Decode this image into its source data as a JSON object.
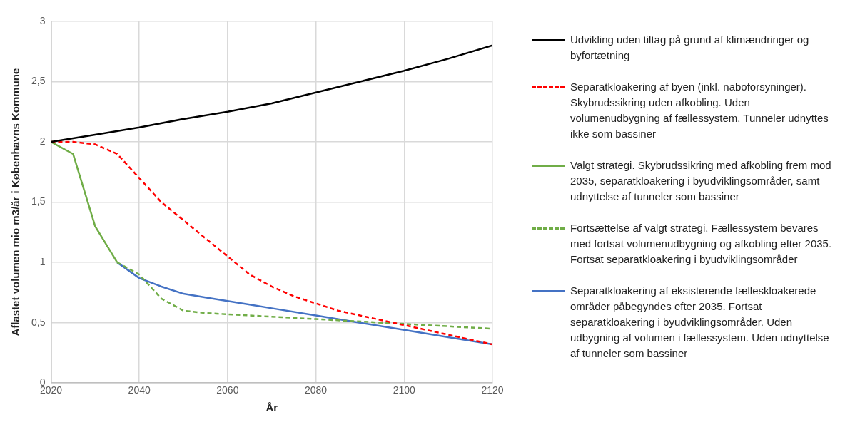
{
  "chart_data": {
    "type": "line",
    "xlabel": "År",
    "ylabel": "Aflastet volumen mio m3/år i Københavns Kommune",
    "xlim": [
      2020,
      2120
    ],
    "xticks": [
      2020,
      2040,
      2060,
      2080,
      2100,
      2120
    ],
    "ylim": [
      0,
      3
    ],
    "yticks": [
      0,
      {
        "value": 0.5,
        "label": "0,5"
      },
      1,
      {
        "value": 1.5,
        "label": "1,5"
      },
      2,
      {
        "value": 2.5,
        "label": "2,5"
      },
      3
    ],
    "grid": true,
    "legend": "right",
    "marker": "none",
    "series": [
      {
        "name": "Udvikling uden tiltag på grund af klimændringer og byfortætning",
        "color": "#000000",
        "line_style": "solid",
        "x": [
          2020,
          2030,
          2040,
          2050,
          2060,
          2070,
          2080,
          2090,
          2100,
          2110,
          2120
        ],
        "values": [
          2.0,
          2.06,
          2.12,
          2.19,
          2.25,
          2.32,
          2.41,
          2.5,
          2.59,
          2.69,
          2.8
        ]
      },
      {
        "name": "Separatkloakering af byen (inkl. naboforsyninger). Skybrudssikring uden afkobling. Uden volumenudbygning af fællessystem. Tunneler udnyttes ikke som bassiner",
        "color": "#ff0000",
        "line_style": "dashed",
        "x": [
          2020,
          2025,
          2030,
          2035,
          2040,
          2045,
          2050,
          2055,
          2060,
          2065,
          2070,
          2075,
          2080,
          2085,
          2090,
          2095,
          2100,
          2110,
          2120
        ],
        "values": [
          2.0,
          2.0,
          1.98,
          1.9,
          1.7,
          1.5,
          1.35,
          1.2,
          1.05,
          0.9,
          0.8,
          0.72,
          0.66,
          0.6,
          0.56,
          0.52,
          0.48,
          0.4,
          0.32
        ]
      },
      {
        "name": "Valgt strategi. Skybrudssikring med afkobling frem mod 2035, separatkloakering i byudviklingsområder, samt udnyttelse af tunneler som bassiner",
        "color": "#70ad47",
        "line_style": "solid",
        "x": [
          2020,
          2025,
          2030,
          2035
        ],
        "values": [
          2.0,
          1.9,
          1.3,
          1.0
        ]
      },
      {
        "name": "Fortsættelse af valgt strategi. Fællessystem bevares med fortsat volumenudbygning og afkobling efter 2035. Fortsat separatkloakering i byudviklingsområder",
        "color": "#70ad47",
        "line_style": "dashed",
        "x": [
          2035,
          2040,
          2045,
          2050,
          2055,
          2060,
          2080,
          2100,
          2120
        ],
        "values": [
          1.0,
          0.9,
          0.7,
          0.6,
          0.58,
          0.57,
          0.53,
          0.49,
          0.45
        ]
      },
      {
        "name": "Separatkloakering af eksisterende fælleskloakerede områder påbegyndes efter 2035. Fortsat separatkloakering i byudviklingsområder. Uden udbygning af volumen i fællessystem. Uden udnyttelse af tunneler som bassiner",
        "color": "#4472c4",
        "line_style": "solid",
        "x": [
          2035,
          2040,
          2045,
          2050,
          2055,
          2060,
          2065,
          2070,
          2080,
          2090,
          2100,
          2110,
          2120
        ],
        "values": [
          1.0,
          0.87,
          0.8,
          0.74,
          0.71,
          0.68,
          0.65,
          0.62,
          0.56,
          0.5,
          0.44,
          0.38,
          0.32
        ]
      }
    ]
  }
}
